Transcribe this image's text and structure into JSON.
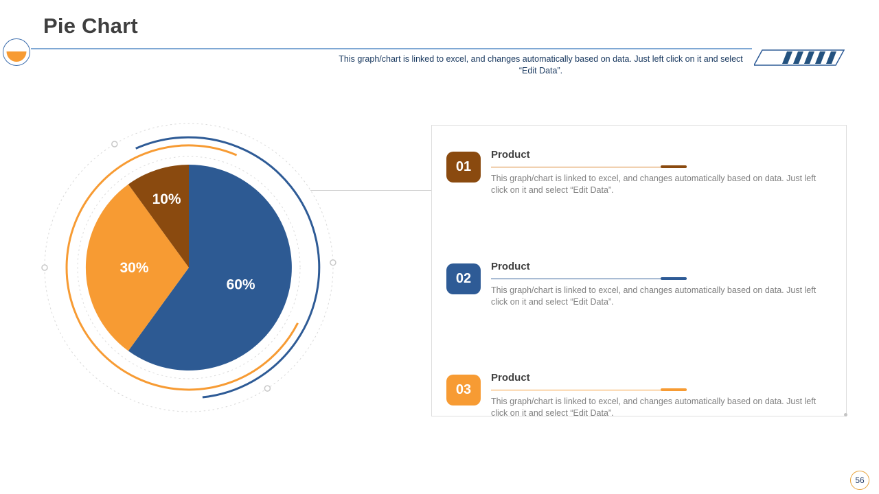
{
  "slide": {
    "title": "Pie Chart",
    "note": "This graph/chart is linked to excel, and changes automatically based on data. Just left click on it and select “Edit Data”.",
    "page_number": "56"
  },
  "chart_data": {
    "type": "pie",
    "labels": [
      "60%",
      "30%",
      "10%"
    ],
    "values": [
      60,
      30,
      10
    ],
    "colors": [
      "#2d5a93",
      "#f79b33",
      "#8a4a0f"
    ],
    "start_angle_deg": 0,
    "direction": "clockwise",
    "label_color": "#ffffff",
    "legend": "none"
  },
  "panel": {
    "items": [
      {
        "number": "01",
        "title": "Product",
        "description": "This graph/chart is linked to excel, and changes automatically based on data. Just left click on it and select “Edit Data”.",
        "color": "#8a4a0f",
        "line_color": "#d9822b"
      },
      {
        "number": "02",
        "title": "Product",
        "description": "This graph/chart is linked to excel, and changes automatically based on data. Just left click on it and select “Edit Data”.",
        "color": "#2e5b96",
        "line_color": "#2e5b96"
      },
      {
        "number": "03",
        "title": "Product",
        "description": "This graph/chart is linked to excel, and changes automatically based on data. Just left click on it and select “Edit Data”.",
        "color": "#f79b33",
        "line_color": "#f79b33"
      }
    ]
  },
  "theme": {
    "blue": "#2e5b96",
    "orange": "#f79b33",
    "dark_orange": "#8a4a0f",
    "navy_text": "#17375e",
    "title_text": "#3f3f3f",
    "body_text": "#7f7f7f"
  }
}
